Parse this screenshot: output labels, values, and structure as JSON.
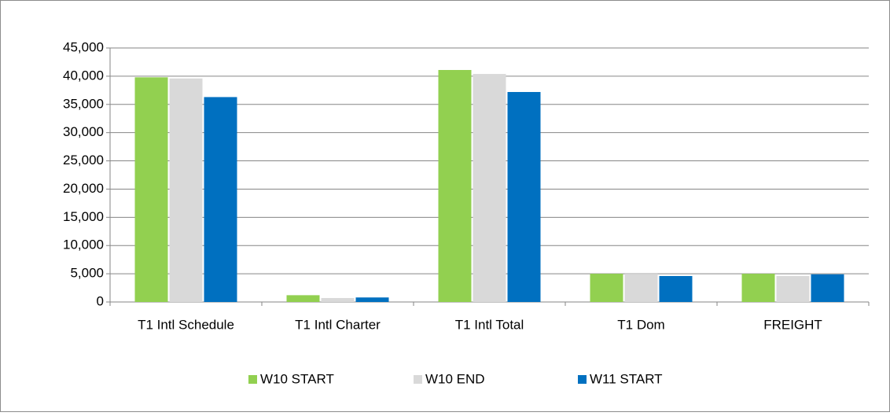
{
  "chart_data": {
    "type": "bar",
    "categories": [
      "T1 Intl Schedule",
      "T1 Intl Charter",
      "T1 Intl Total",
      "T1 Dom",
      "FREIGHT"
    ],
    "series": [
      {
        "name": "W10 START",
        "color": "#92d050",
        "values": [
          39800,
          1200,
          41100,
          5000,
          5000
        ]
      },
      {
        "name": "W10 END",
        "color": "#d9d9d9",
        "values": [
          39600,
          700,
          40400,
          5000,
          4600
        ]
      },
      {
        "name": "W11 START",
        "color": "#0070c0",
        "values": [
          36300,
          800,
          37200,
          4600,
          4900
        ]
      }
    ],
    "ylim": [
      0,
      45000
    ],
    "yticks": [
      0,
      {
        "value": 5000,
        "label": "5,000"
      },
      {
        "value": 10000,
        "label": "10,000"
      },
      {
        "value": 15000,
        "label": "15,000"
      },
      {
        "value": 20000,
        "label": "20,000"
      },
      {
        "value": 25000,
        "label": "25,000"
      },
      {
        "value": 30000,
        "label": "30,000"
      },
      {
        "value": 35000,
        "label": "35,000"
      },
      {
        "value": 40000,
        "label": "40,000"
      },
      {
        "value": 45000,
        "label": "45,000"
      }
    ],
    "grid": true,
    "legend": "bottom"
  }
}
